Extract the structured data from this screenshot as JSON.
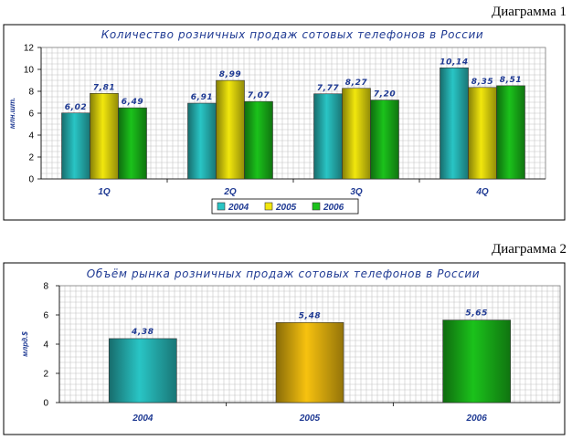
{
  "captions": {
    "diagram1": "Диаграмма 1",
    "diagram2": "Диаграмма 2"
  },
  "chart_data": [
    {
      "type": "bar",
      "title": "Количество розничных продаж сотовых телефонов в России",
      "xlabel": "",
      "ylabel": "млн.шт.",
      "ylim": [
        0,
        12
      ],
      "yticks": [
        0,
        2,
        4,
        6,
        8,
        10,
        12
      ],
      "categories": [
        "1Q",
        "2Q",
        "3Q",
        "4Q"
      ],
      "series": [
        {
          "name": "2004",
          "values": [
            6.02,
            6.91,
            7.77,
            10.14
          ],
          "labels": [
            "6,02",
            "6,91",
            "7,77",
            "10,14"
          ],
          "color": "#29c5c5"
        },
        {
          "name": "2005",
          "values": [
            7.81,
            8.99,
            8.27,
            8.35
          ],
          "labels": [
            "7,81",
            "8,99",
            "8,27",
            "8,35"
          ],
          "color": "#f2e70d"
        },
        {
          "name": "2006",
          "values": [
            6.49,
            7.07,
            7.2,
            8.51
          ],
          "labels": [
            "6,49",
            "7,07",
            "7,20",
            "8,51"
          ],
          "color": "#1bc21b"
        }
      ],
      "grid": true,
      "legend": "bottom"
    },
    {
      "type": "bar",
      "title": "Объём рынка розничных продаж сотовых телефонов в России",
      "xlabel": "",
      "ylabel": "млрд.$",
      "ylim": [
        0,
        8
      ],
      "yticks": [
        0,
        2,
        4,
        6,
        8
      ],
      "categories": [
        "2004",
        "2005",
        "2006"
      ],
      "values": [
        4.38,
        5.48,
        5.65
      ],
      "labels": [
        "4,38",
        "5,48",
        "5,65"
      ],
      "colors": [
        "#29c5c5",
        "#f7c20f",
        "#1bc21b"
      ],
      "grid": true,
      "legend": "none"
    }
  ]
}
